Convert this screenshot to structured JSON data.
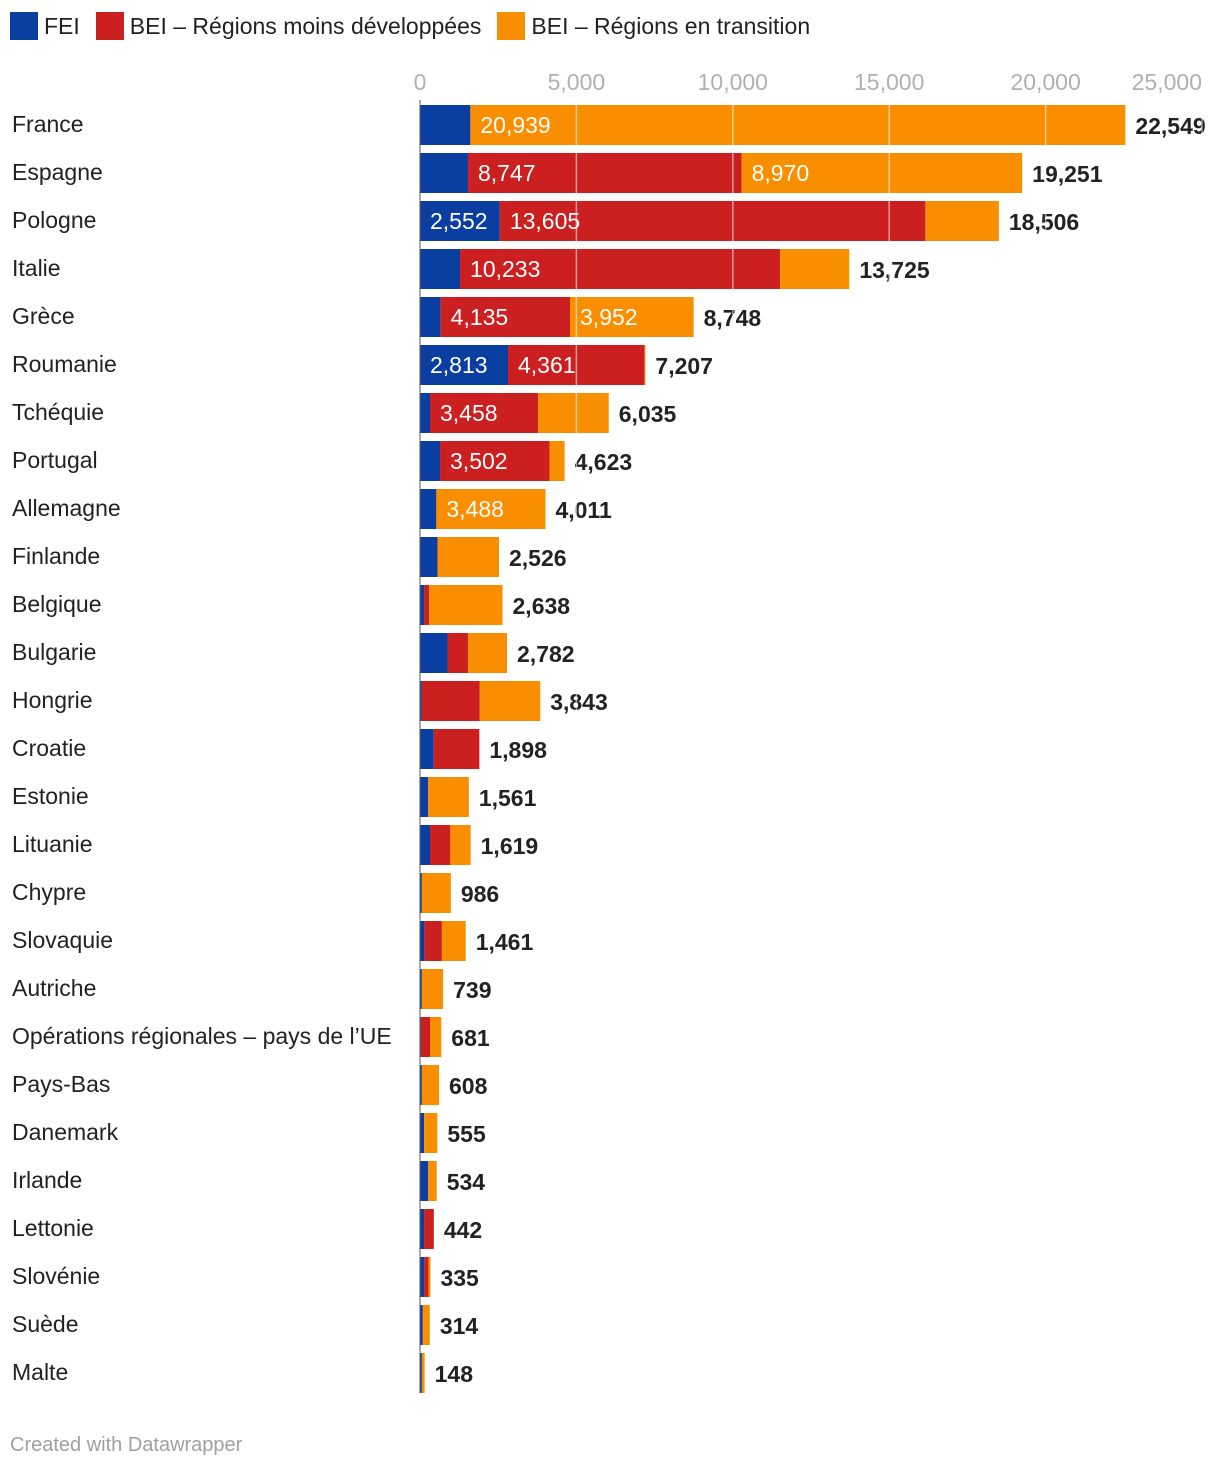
{
  "chart_data": {
    "type": "bar",
    "orientation": "horizontal",
    "stacked": true,
    "title": "",
    "xlabel": "",
    "ylabel": "",
    "xlim": [
      0,
      25000
    ],
    "ticks": [
      0,
      5000,
      10000,
      15000,
      20000,
      25000
    ],
    "tick_labels": [
      "0",
      "5,000",
      "10,000",
      "15,000",
      "20,000",
      "25,000"
    ],
    "grid": true,
    "legend_position": "top-left",
    "series": [
      {
        "name": "FEI",
        "color": "#0a3ea0"
      },
      {
        "name": "BEI – Régions moins développées",
        "color": "#cc1f1f"
      },
      {
        "name": "BEI – Régions en transition",
        "color": "#f98e00"
      }
    ],
    "rows": [
      {
        "label": "France",
        "values": [
          1610,
          0,
          20939
        ],
        "labels": [
          "",
          "",
          "20,939"
        ],
        "total": "22,549"
      },
      {
        "label": "Espagne",
        "values": [
          1534,
          8747,
          8970
        ],
        "labels": [
          "",
          "8,747",
          "8,970"
        ],
        "total": "19,251"
      },
      {
        "label": "Pologne",
        "values": [
          2552,
          13605,
          2349
        ],
        "labels": [
          "2,552",
          "13,605",
          ""
        ],
        "total": "18,506"
      },
      {
        "label": "Italie",
        "values": [
          1280,
          10233,
          2212
        ],
        "labels": [
          "",
          "10,233",
          ""
        ],
        "total": "13,725"
      },
      {
        "label": "Grèce",
        "values": [
          661,
          4135,
          3952
        ],
        "labels": [
          "",
          "4,135",
          "3,952"
        ],
        "total": "8,748"
      },
      {
        "label": "Roumanie",
        "values": [
          2813,
          4361,
          33
        ],
        "labels": [
          "2,813",
          "4,361",
          ""
        ],
        "total": "7,207"
      },
      {
        "label": "Tchéquie",
        "values": [
          320,
          3458,
          2257
        ],
        "labels": [
          "",
          "3,458",
          ""
        ],
        "total": "6,035"
      },
      {
        "label": "Portugal",
        "values": [
          640,
          3502,
          481
        ],
        "labels": [
          "",
          "3,502",
          ""
        ],
        "total": "4,623"
      },
      {
        "label": "Allemagne",
        "values": [
          523,
          0,
          3488
        ],
        "labels": [
          "",
          "",
          "3,488"
        ],
        "total": "4,011"
      },
      {
        "label": "Finlande",
        "values": [
          560,
          0,
          1966
        ],
        "labels": [
          "",
          "",
          ""
        ],
        "total": "2,526"
      },
      {
        "label": "Belgique",
        "values": [
          130,
          160,
          2348
        ],
        "labels": [
          "",
          "",
          ""
        ],
        "total": "2,638"
      },
      {
        "label": "Bulgarie",
        "values": [
          880,
          660,
          1242
        ],
        "labels": [
          "",
          "",
          ""
        ],
        "total": "2,782"
      },
      {
        "label": "Hongrie",
        "values": [
          60,
          1850,
          1933
        ],
        "labels": [
          "",
          "",
          ""
        ],
        "total": "3,843"
      },
      {
        "label": "Croatie",
        "values": [
          440,
          1458,
          0
        ],
        "labels": [
          "",
          "",
          ""
        ],
        "total": "1,898"
      },
      {
        "label": "Estonie",
        "values": [
          260,
          0,
          1301
        ],
        "labels": [
          "",
          "",
          ""
        ],
        "total": "1,561"
      },
      {
        "label": "Lituanie",
        "values": [
          320,
          650,
          649
        ],
        "labels": [
          "",
          "",
          ""
        ],
        "total": "1,619"
      },
      {
        "label": "Chypre",
        "values": [
          60,
          0,
          926
        ],
        "labels": [
          "",
          "",
          ""
        ],
        "total": "986"
      },
      {
        "label": "Slovaquie",
        "values": [
          140,
          560,
          761
        ],
        "labels": [
          "",
          "",
          ""
        ],
        "total": "1,461"
      },
      {
        "label": "Autriche",
        "values": [
          60,
          0,
          679
        ],
        "labels": [
          "",
          "",
          ""
        ],
        "total": "739"
      },
      {
        "label": "Opérations régionales – pays de l’UE",
        "values": [
          30,
          300,
          351
        ],
        "labels": [
          "",
          "",
          ""
        ],
        "total": "681"
      },
      {
        "label": "Pays-Bas",
        "values": [
          60,
          0,
          548
        ],
        "labels": [
          "",
          "",
          ""
        ],
        "total": "608"
      },
      {
        "label": "Danemark",
        "values": [
          130,
          0,
          425
        ],
        "labels": [
          "",
          "",
          ""
        ],
        "total": "555"
      },
      {
        "label": "Irlande",
        "values": [
          260,
          0,
          274
        ],
        "labels": [
          "",
          "",
          ""
        ],
        "total": "534"
      },
      {
        "label": "Lettonie",
        "values": [
          130,
          312,
          0
        ],
        "labels": [
          "",
          "",
          ""
        ],
        "total": "442"
      },
      {
        "label": "Slovénie",
        "values": [
          130,
          140,
          65
        ],
        "labels": [
          "",
          "",
          ""
        ],
        "total": "335"
      },
      {
        "label": "Suède",
        "values": [
          90,
          0,
          224
        ],
        "labels": [
          "",
          "",
          ""
        ],
        "total": "314"
      },
      {
        "label": "Malte",
        "values": [
          60,
          0,
          88
        ],
        "labels": [
          "",
          "",
          ""
        ],
        "total": "148"
      }
    ]
  },
  "legend": {
    "items": [
      {
        "label": "FEI",
        "color": "#0a3ea0"
      },
      {
        "label": "BEI – Régions moins développées",
        "color": "#cc1f1f"
      },
      {
        "label": "BEI – Régions en transition",
        "color": "#f98e00"
      }
    ]
  },
  "footer": {
    "credit": "Created with Datawrapper"
  }
}
